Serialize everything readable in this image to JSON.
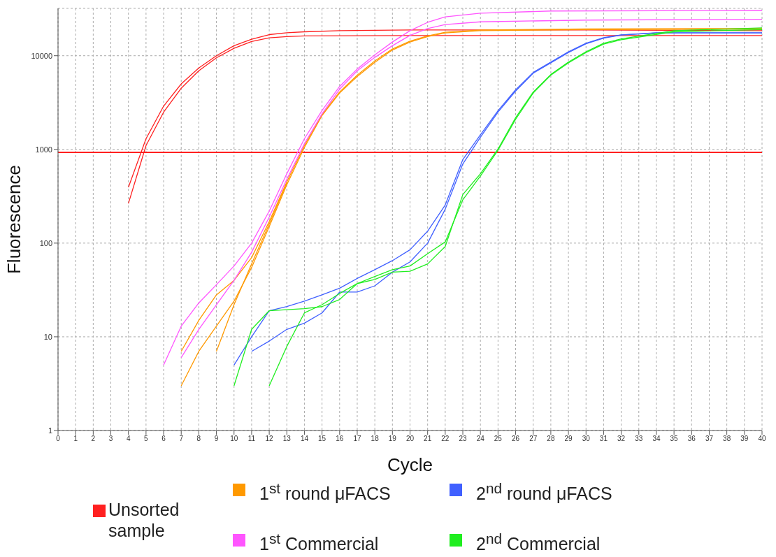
{
  "chart_data": {
    "type": "line",
    "xlabel": "Cycle",
    "ylabel": "Fluorescence",
    "log": "y",
    "grid": true,
    "marker": "none",
    "line_style": "solid",
    "legend": "bottom",
    "xlim": [
      0,
      40
    ],
    "xticks": [
      0,
      1,
      2,
      3,
      4,
      5,
      6,
      7,
      8,
      9,
      10,
      11,
      12,
      13,
      14,
      15,
      16,
      17,
      18,
      19,
      20,
      21,
      22,
      23,
      24,
      25,
      26,
      27,
      28,
      29,
      30,
      31,
      32,
      33,
      34,
      35,
      36,
      37,
      38,
      39,
      40
    ],
    "ylim": [
      1,
      32000
    ],
    "yticks": [
      1,
      10,
      100,
      1000,
      10000
    ],
    "ref_lines": [
      {
        "axis": "y",
        "value": 930,
        "color": "#ff2020"
      }
    ],
    "series": [
      {
        "name": "Unsorted sample",
        "color": "#ff2020",
        "x": [
          4,
          5,
          6,
          7,
          8,
          9,
          10,
          11,
          12,
          13,
          14,
          16,
          20,
          30,
          40
        ],
        "values": [
          394,
          1300,
          2900,
          5000,
          7400,
          10000,
          12800,
          15000,
          16800,
          17600,
          18000,
          18500,
          18800,
          18800,
          18500
        ]
      },
      {
        "color": "#ff2020",
        "x": [
          4,
          5,
          6,
          7,
          8,
          9,
          10,
          11,
          12,
          13,
          14,
          20,
          40
        ],
        "values": [
          265,
          1100,
          2500,
          4500,
          6900,
          9500,
          12000,
          14200,
          15500,
          16000,
          16300,
          16400,
          16400
        ]
      },
      {
        "name": "1$^{st}$ round μFACS",
        "color": "#ff9900",
        "x": [
          7,
          8,
          9,
          10,
          11,
          12,
          13,
          14,
          15,
          16,
          17,
          18,
          19,
          20,
          21,
          22,
          24,
          30,
          40
        ],
        "values": [
          3,
          7,
          13,
          24,
          55,
          150,
          420,
          1050,
          2300,
          4000,
          6000,
          8500,
          11500,
          14000,
          16000,
          17500,
          18500,
          19000,
          19200
        ]
      },
      {
        "color": "#ff9900",
        "x": [
          7,
          8,
          9,
          10,
          11,
          12,
          13,
          14,
          15,
          16,
          17,
          18,
          19,
          20,
          21,
          22,
          24,
          30,
          40
        ],
        "values": [
          7,
          15,
          28,
          40,
          70,
          170,
          450,
          1100,
          2350,
          4100,
          6200,
          8800,
          11800,
          14300,
          16300,
          17800,
          18800,
          19300,
          19500
        ]
      },
      {
        "color": "#ff9900",
        "x": [
          9,
          10,
          11,
          12,
          13
        ],
        "values": [
          7,
          22,
          60,
          160,
          440
        ]
      },
      {
        "name": "1$^{st}$ Commercial",
        "color": "#ff55ff",
        "x": [
          6,
          7,
          8,
          9,
          10,
          11,
          12,
          13,
          14,
          15,
          16,
          17,
          18,
          19,
          20,
          21,
          22,
          24,
          28,
          40
        ],
        "values": [
          5,
          13,
          23,
          36,
          57,
          100,
          220,
          550,
          1300,
          2600,
          4700,
          7200,
          10200,
          14000,
          18500,
          22700,
          26000,
          28400,
          30000,
          30400
        ]
      },
      {
        "color": "#ff55ff",
        "x": [
          7,
          8,
          9,
          10,
          11,
          12,
          13,
          14,
          15,
          16,
          17,
          18,
          19,
          20,
          21,
          22,
          24,
          30,
          40
        ],
        "values": [
          6,
          12,
          22,
          40,
          80,
          190,
          480,
          1150,
          2400,
          4400,
          6900,
          9600,
          12800,
          16500,
          19500,
          21500,
          23000,
          24000,
          24500
        ]
      },
      {
        "name": "2$^{nd}$ round μFACS",
        "color": "#4060ff",
        "x": [
          10,
          11,
          12,
          13,
          14,
          15,
          16,
          17,
          18,
          19,
          20,
          21,
          22,
          23,
          24,
          25,
          26,
          27,
          28,
          29,
          30,
          31,
          32,
          34,
          40
        ],
        "values": [
          5,
          10,
          19,
          21,
          24,
          28,
          33,
          42,
          52,
          65,
          85,
          134,
          255,
          780,
          1430,
          2590,
          4330,
          6630,
          8570,
          11000,
          13600,
          15600,
          16700,
          17600,
          17600
        ]
      },
      {
        "color": "#4060ff",
        "x": [
          11,
          12,
          13,
          14,
          15,
          16,
          17,
          18,
          19,
          20,
          21,
          22,
          23,
          24,
          25,
          26,
          27,
          28,
          29,
          30,
          31,
          32,
          34,
          40
        ],
        "values": [
          7,
          9,
          12,
          14,
          18,
          30,
          30,
          35,
          49,
          63,
          100,
          230,
          700,
          1350,
          2500,
          4200,
          6500,
          8400,
          10800,
          13400,
          15400,
          16600,
          17500,
          17500
        ]
      },
      {
        "name": "2$^{nd}$ Commercial",
        "color": "#20ee20",
        "x": [
          10,
          11,
          12,
          13,
          14,
          15,
          16,
          17,
          18,
          19,
          20,
          21,
          22,
          23,
          24,
          25,
          26,
          27,
          28,
          29,
          30,
          31,
          32,
          35,
          40
        ],
        "values": [
          3,
          12,
          19,
          19.5,
          20,
          21,
          25,
          37,
          41,
          49,
          50,
          60,
          92,
          330,
          550,
          1010,
          2180,
          4100,
          6300,
          8570,
          11000,
          13600,
          15100,
          18500,
          19800
        ]
      },
      {
        "color": "#20ee20",
        "x": [
          12,
          13,
          14,
          15,
          16,
          17,
          18,
          19,
          20,
          21,
          22,
          23,
          24,
          25,
          26,
          27,
          28,
          29,
          30,
          31,
          32,
          35,
          40
        ],
        "values": [
          3,
          7.9,
          18,
          22,
          29,
          37,
          44,
          52,
          57,
          77,
          103,
          290,
          520,
          980,
          2100,
          4000,
          6200,
          8400,
          10800,
          13300,
          14800,
          18000,
          19000
        ]
      }
    ]
  }
}
